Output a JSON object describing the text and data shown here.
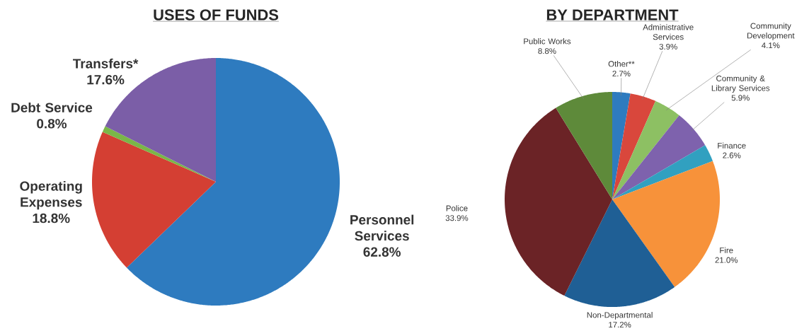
{
  "chart_data": [
    {
      "type": "pie",
      "title": "USES OF FUNDS",
      "categories": [
        "Personnel Services",
        "Operating Expenses",
        "Debt Service",
        "Transfers*"
      ],
      "values": [
        62.8,
        18.8,
        0.8,
        17.6
      ],
      "value_labels": [
        "62.8%",
        "18.8%",
        "0.8%",
        "17.6%"
      ],
      "colors": [
        "#2e7bbf",
        "#d43f33",
        "#7ab648",
        "#7b5ea7"
      ]
    },
    {
      "type": "pie",
      "title": "BY DEPARTMENT",
      "categories": [
        "Other**",
        "Administrative Services",
        "Community Development",
        "Community & Library Services",
        "Finance",
        "Fire",
        "Non-Departmental",
        "Police",
        "Public Works"
      ],
      "values": [
        2.7,
        3.9,
        4.1,
        5.9,
        2.6,
        21.0,
        17.2,
        33.9,
        8.8
      ],
      "value_labels": [
        "2.7%",
        "3.9%",
        "4.1%",
        "5.9%",
        "2.6%",
        "21.0%",
        "17.2%",
        "33.9%",
        "8.8%"
      ],
      "colors": [
        "#2e7bbf",
        "#d9473c",
        "#8dc063",
        "#7e62ad",
        "#31a0c0",
        "#f7923a",
        "#1f5f95",
        "#6b2326",
        "#5e8a3a"
      ]
    }
  ]
}
